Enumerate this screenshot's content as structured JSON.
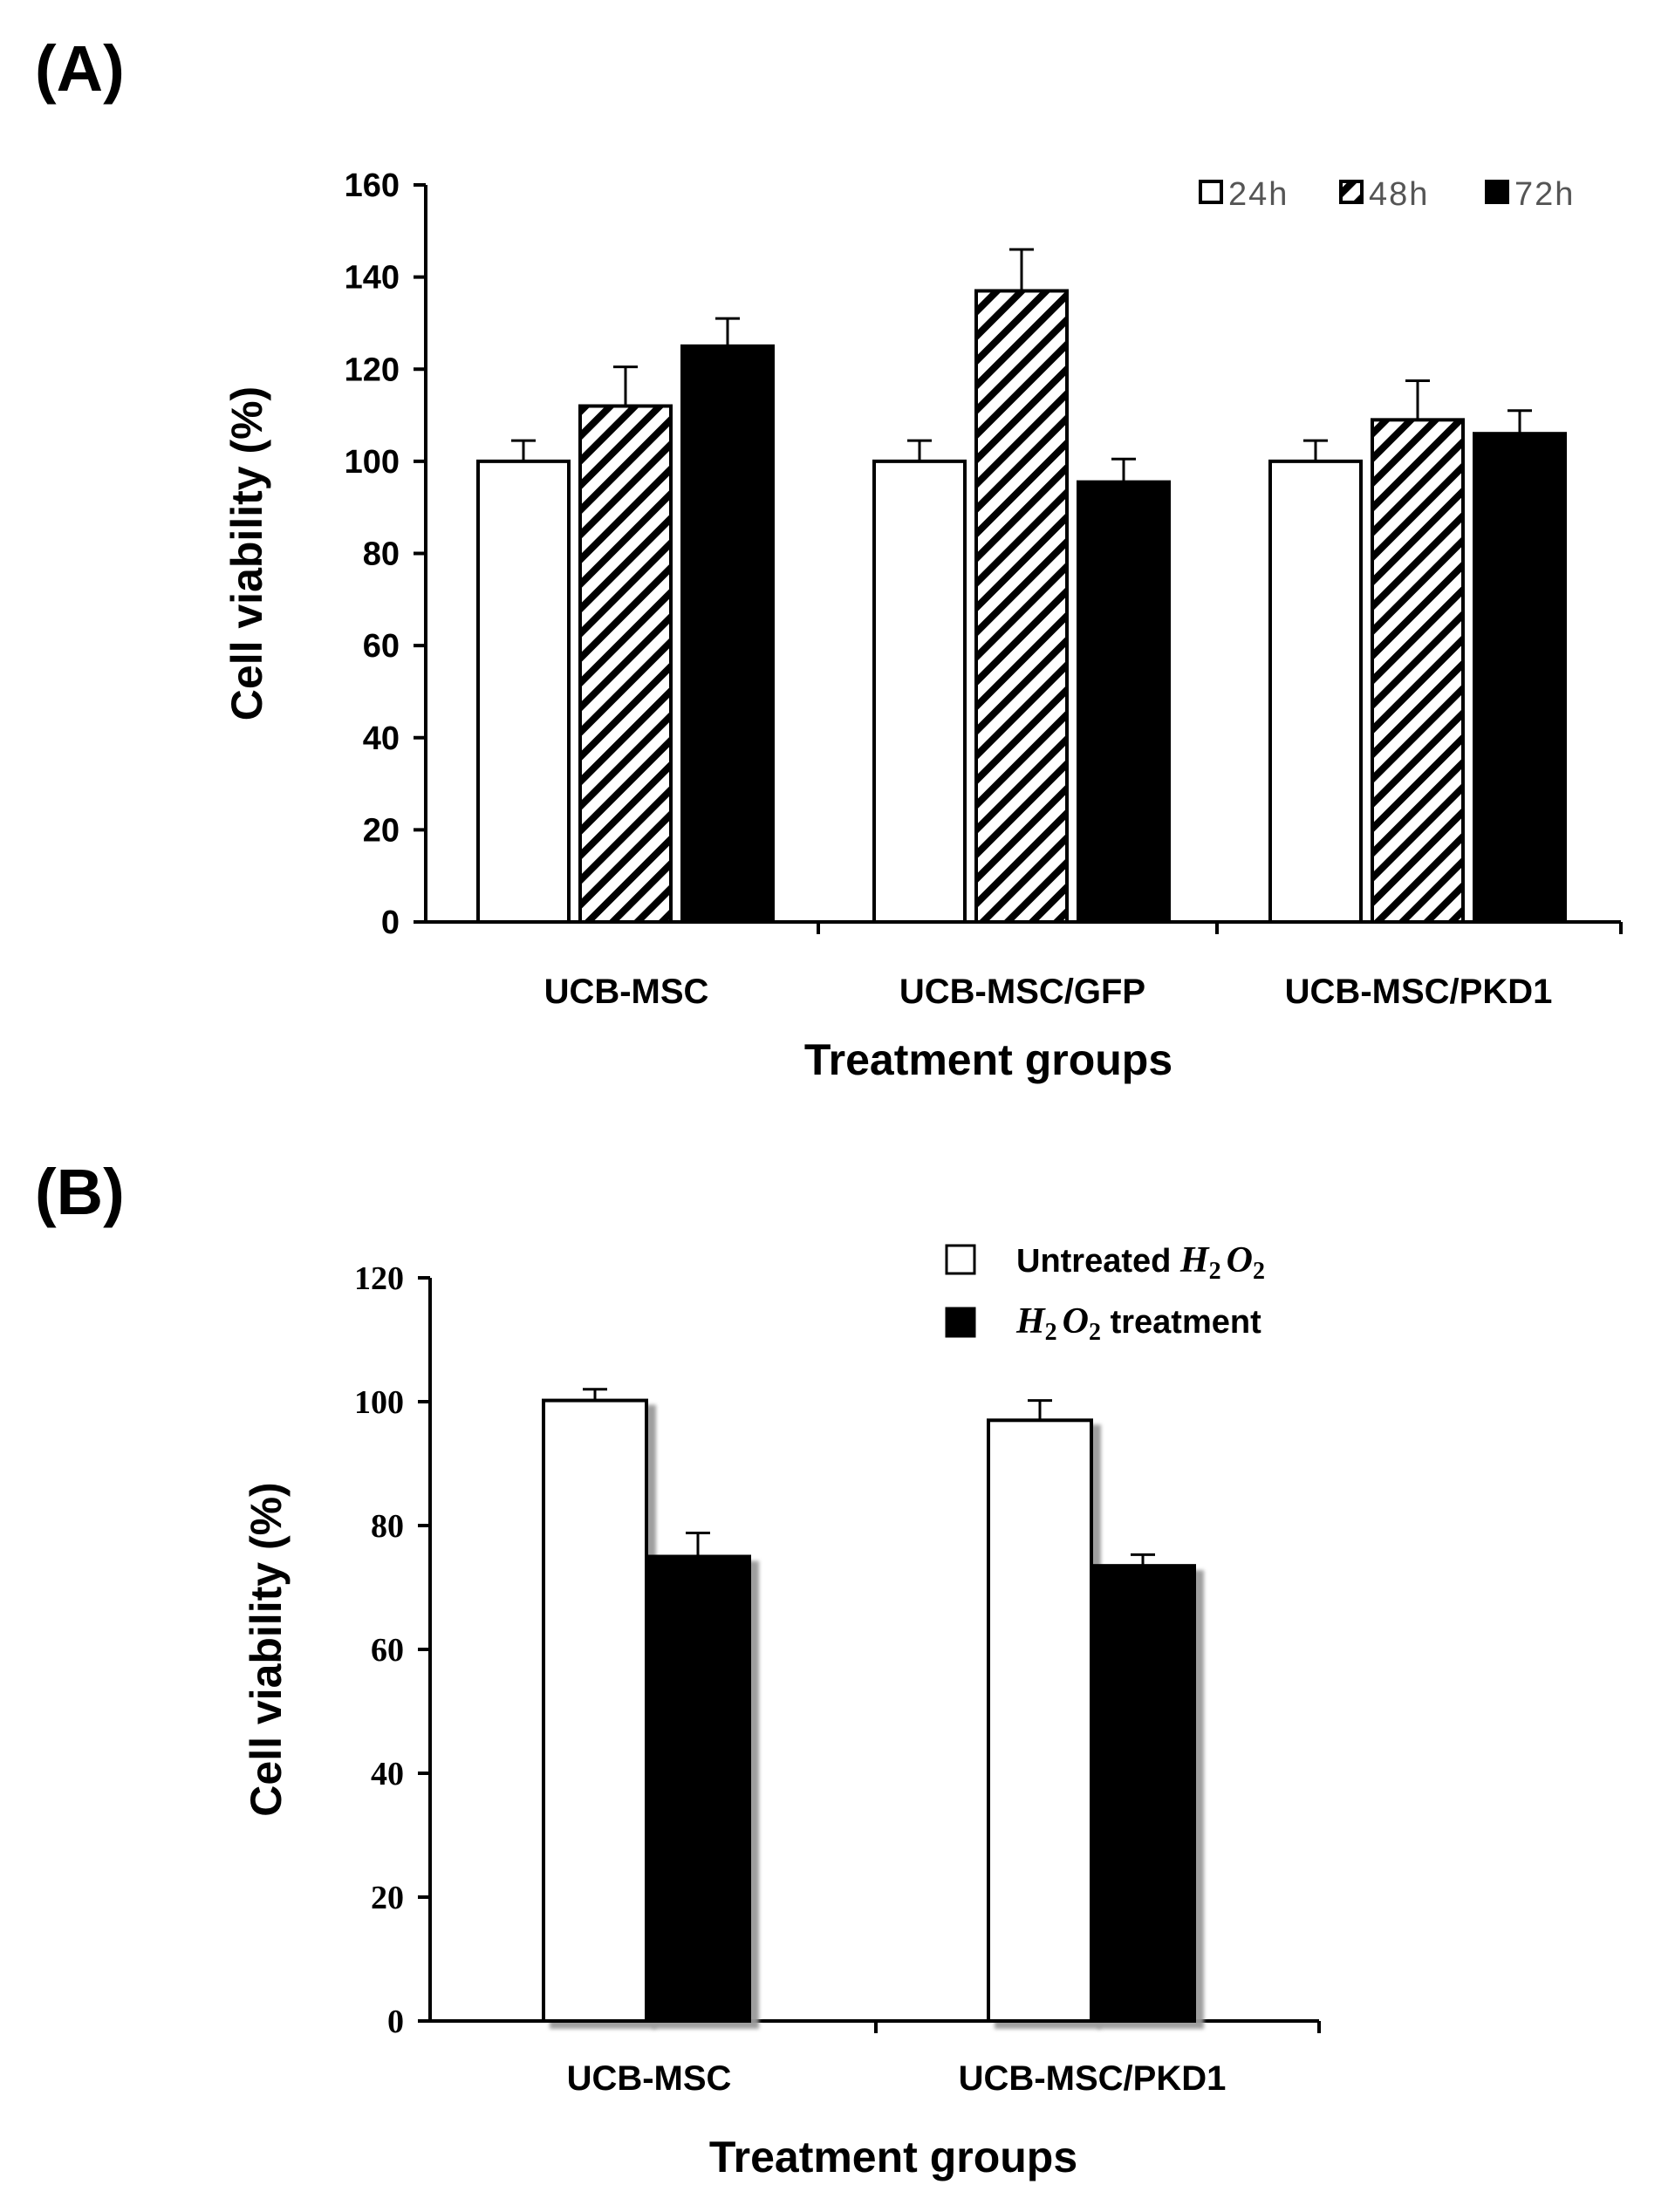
{
  "panel_a_label": "(A)",
  "panel_b_label": "(B)",
  "chart_data": [
    {
      "type": "bar",
      "panel": "(A)",
      "categories": [
        "UCB-MSC",
        "UCB-MSC/GFP",
        "UCB-MSC/PKD1"
      ],
      "ylabel": "Cell viability (%)",
      "xlabel": "Treatment groups",
      "ylim": [
        0,
        160
      ],
      "yticks": [
        0,
        20,
        40,
        60,
        80,
        100,
        120,
        140,
        160
      ],
      "legend_position": "top-right",
      "grid": false,
      "series": [
        {
          "name": "24h",
          "pattern": "open",
          "color": "#ffffff",
          "values": [
            100,
            100,
            100
          ],
          "errors": [
            4.5,
            4.5,
            4.5
          ]
        },
        {
          "name": "48h",
          "pattern": "hatched",
          "color": "#000000",
          "values": [
            112,
            137,
            109
          ],
          "errors": [
            8.5,
            9,
            8.5
          ]
        },
        {
          "name": "72h",
          "pattern": "solid",
          "color": "#000000",
          "values": [
            125,
            95.5,
            106
          ],
          "errors": [
            6,
            5,
            5
          ]
        }
      ]
    },
    {
      "type": "bar",
      "panel": "(B)",
      "categories": [
        "UCB-MSC",
        "UCB-MSC/PKD1"
      ],
      "ylabel": "Cell viability (%)",
      "xlabel": "Treatment groups",
      "ylim": [
        0,
        120
      ],
      "yticks": [
        0,
        20,
        40,
        60,
        80,
        100,
        120
      ],
      "legend_position": "top-right",
      "grid": false,
      "series": [
        {
          "name": "Untreated H2O2",
          "pattern": "open",
          "color": "#ffffff",
          "values": [
            100.2,
            97
          ],
          "errors": [
            1.8,
            3.2
          ]
        },
        {
          "name": "H2O2 treatment",
          "pattern": "solid",
          "color": "#000000",
          "values": [
            75,
            73.5
          ],
          "errors": [
            3.8,
            1.8
          ]
        }
      ]
    }
  ]
}
